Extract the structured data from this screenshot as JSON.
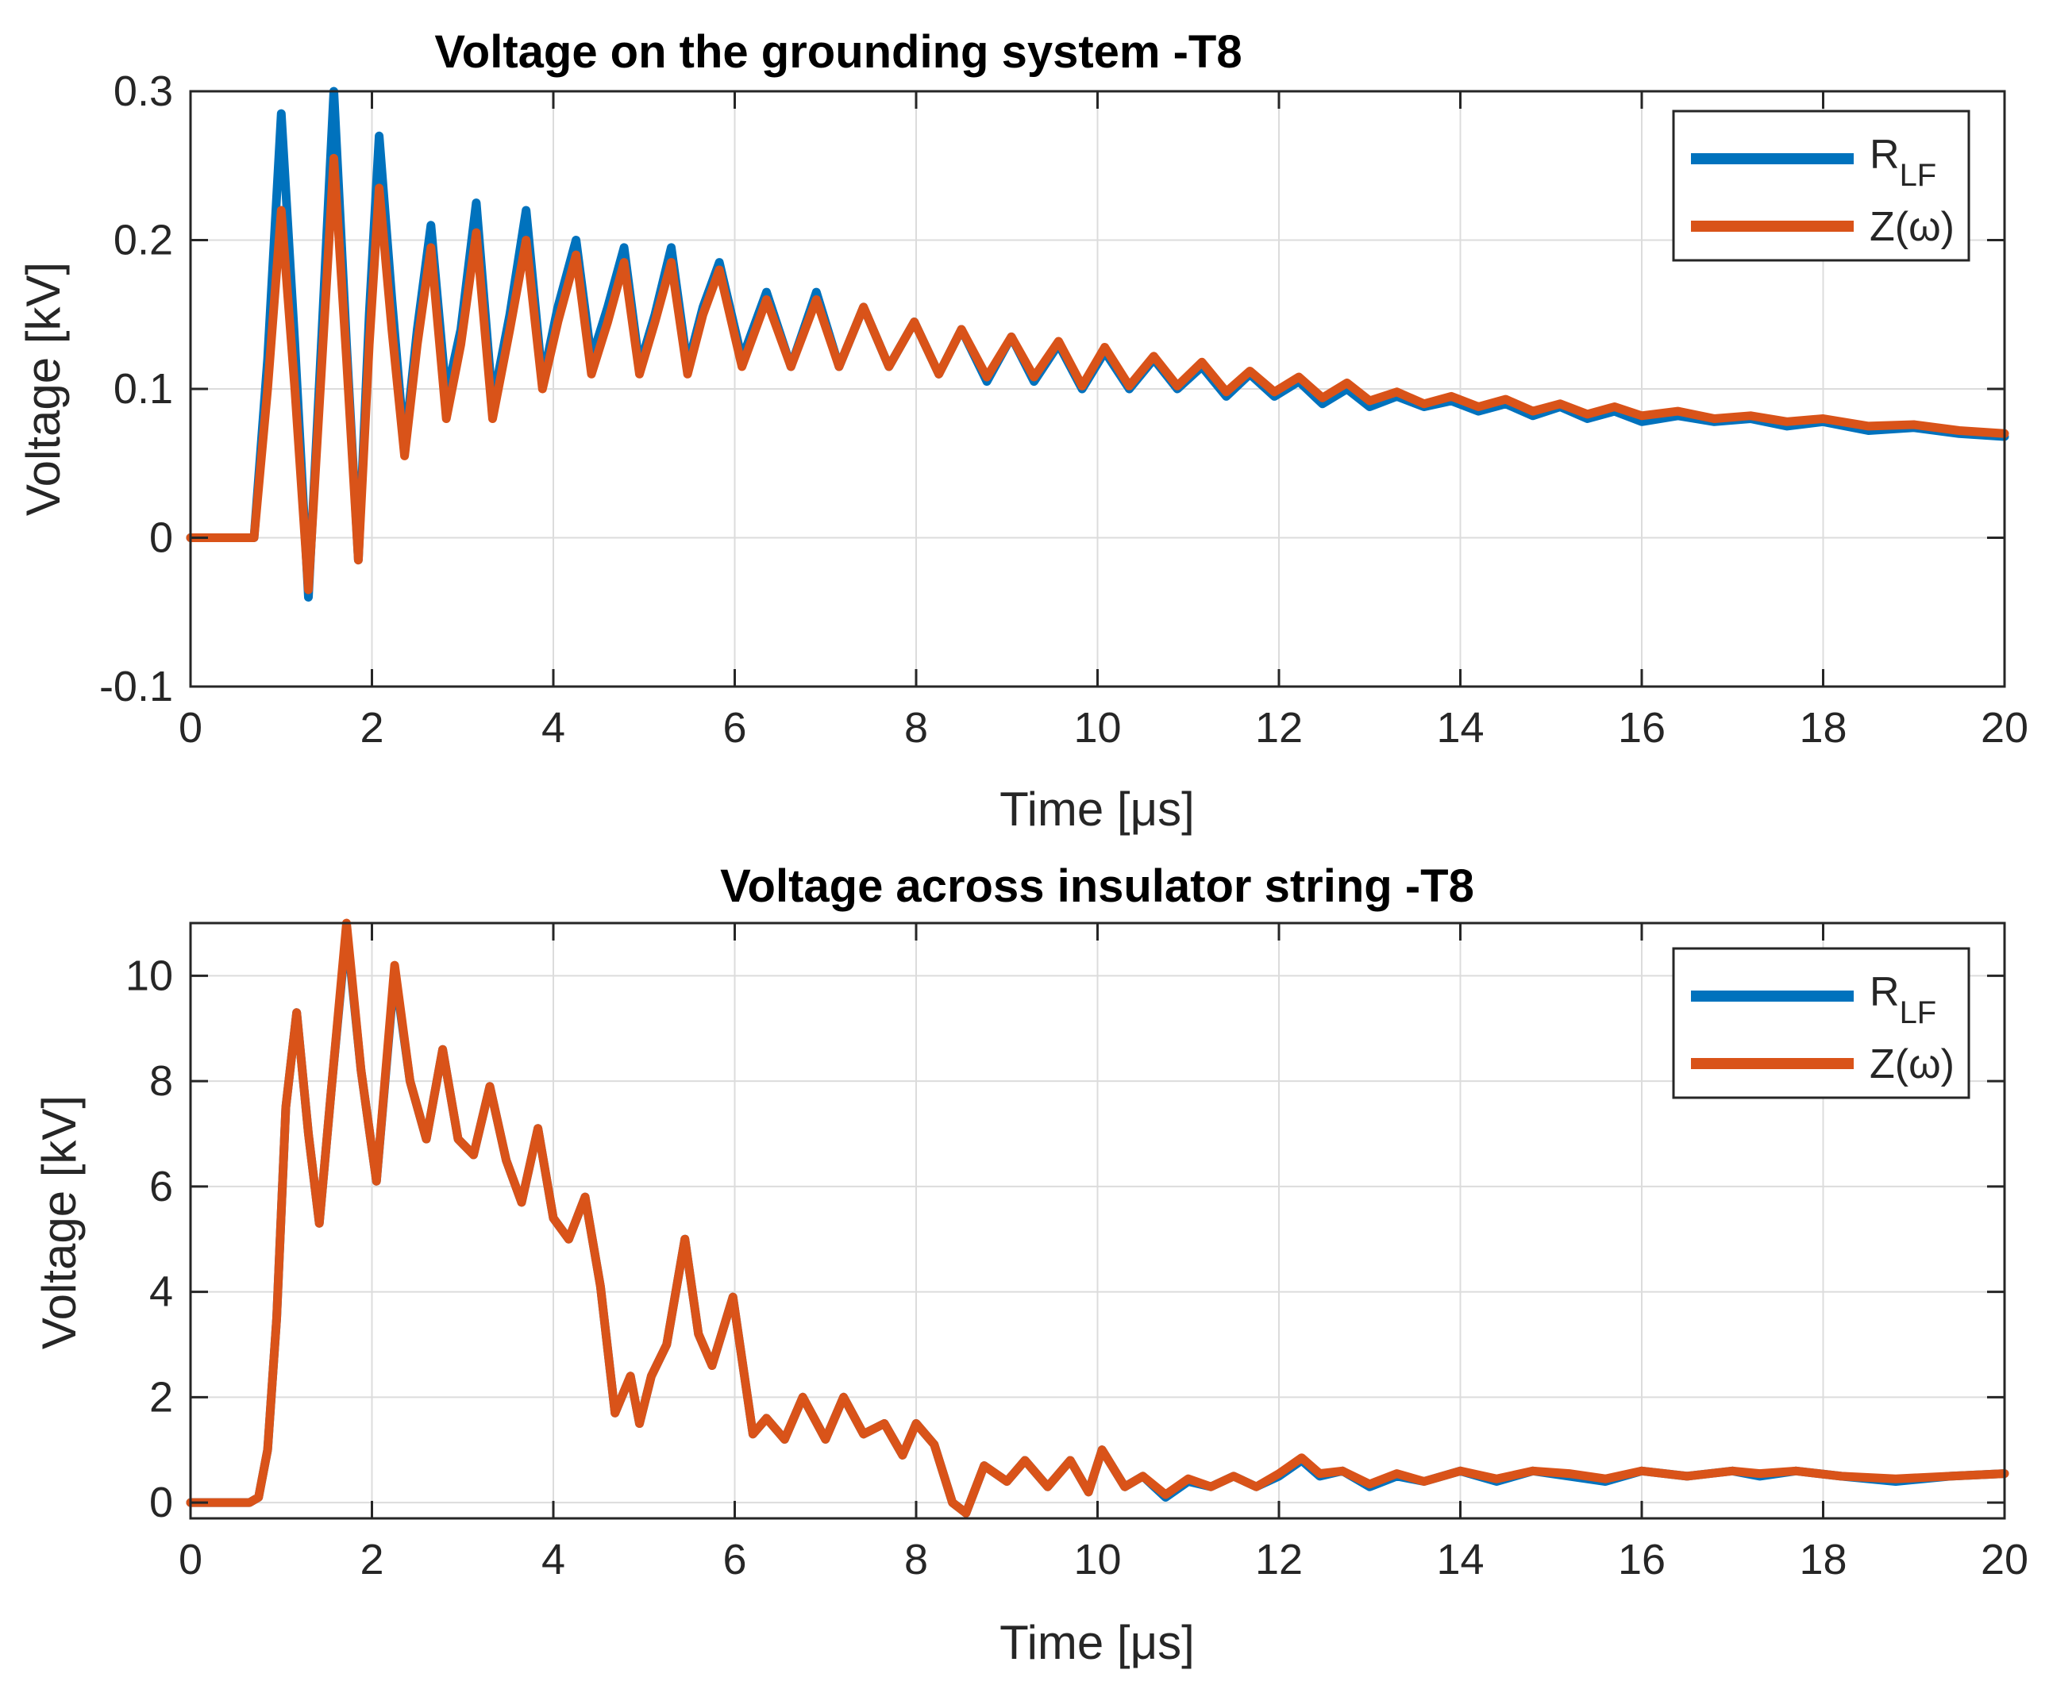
{
  "colors": {
    "blue": "#0072bd",
    "orange": "#d95319",
    "axis": "#262626",
    "grid": "#dcdcdc"
  },
  "chart_data": [
    {
      "type": "line",
      "title": "Voltage on the grounding system -T8",
      "xlabel": "Time [μs]",
      "ylabel": "Voltage [kV]",
      "xlim": [
        0,
        20
      ],
      "ylim": [
        -0.1,
        0.3
      ],
      "xticks": [
        0,
        2,
        4,
        6,
        8,
        10,
        12,
        14,
        16,
        18,
        20
      ],
      "yticks": [
        -0.1,
        0,
        0.1,
        0.2,
        0.3
      ],
      "ytick_labels": [
        "-0.1",
        "0",
        "0.1",
        "0.2",
        "0.3"
      ],
      "grid": true,
      "legend_position": "top-right",
      "series": [
        {
          "name": "R_LF",
          "name_main": "R",
          "name_sub": "LF",
          "color": "#0072bd",
          "x": [
            0,
            0.7,
            0.85,
            1.0,
            1.15,
            1.3,
            1.45,
            1.58,
            1.72,
            1.85,
            1.97,
            2.08,
            2.22,
            2.36,
            2.5,
            2.65,
            2.82,
            2.98,
            3.15,
            3.33,
            3.52,
            3.7,
            3.88,
            4.05,
            4.25,
            4.42,
            4.6,
            4.78,
            4.95,
            5.12,
            5.3,
            5.48,
            5.65,
            5.83,
            6.08,
            6.35,
            6.62,
            6.9,
            7.15,
            7.42,
            7.7,
            7.98,
            8.25,
            8.5,
            8.78,
            9.05,
            9.3,
            9.57,
            9.83,
            10.08,
            10.35,
            10.62,
            10.88,
            11.15,
            11.42,
            11.68,
            11.95,
            12.22,
            12.48,
            12.75,
            13.0,
            13.3,
            13.6,
            13.9,
            14.2,
            14.5,
            14.8,
            15.1,
            15.4,
            15.7,
            16.0,
            16.4,
            16.8,
            17.2,
            17.6,
            18.0,
            18.5,
            19.0,
            19.5,
            20.0
          ],
          "y": [
            0,
            0,
            0.12,
            0.285,
            0.13,
            -0.04,
            0.14,
            0.3,
            0.13,
            -0.015,
            0.15,
            0.27,
            0.16,
            0.06,
            0.14,
            0.21,
            0.095,
            0.14,
            0.225,
            0.09,
            0.15,
            0.22,
            0.105,
            0.155,
            0.2,
            0.12,
            0.155,
            0.195,
            0.115,
            0.15,
            0.195,
            0.115,
            0.155,
            0.185,
            0.12,
            0.165,
            0.115,
            0.165,
            0.115,
            0.155,
            0.115,
            0.145,
            0.11,
            0.14,
            0.105,
            0.135,
            0.105,
            0.13,
            0.1,
            0.125,
            0.1,
            0.12,
            0.1,
            0.115,
            0.095,
            0.11,
            0.095,
            0.105,
            0.09,
            0.1,
            0.088,
            0.095,
            0.088,
            0.092,
            0.085,
            0.09,
            0.082,
            0.088,
            0.08,
            0.085,
            0.078,
            0.082,
            0.078,
            0.08,
            0.075,
            0.078,
            0.072,
            0.074,
            0.07,
            0.068
          ]
        },
        {
          "name": "Z(ω)",
          "color": "#d95319",
          "x": [
            0,
            0.7,
            0.85,
            1.0,
            1.15,
            1.3,
            1.45,
            1.58,
            1.72,
            1.85,
            1.97,
            2.08,
            2.22,
            2.36,
            2.5,
            2.65,
            2.82,
            2.98,
            3.15,
            3.33,
            3.52,
            3.7,
            3.88,
            4.05,
            4.25,
            4.42,
            4.6,
            4.78,
            4.95,
            5.12,
            5.3,
            5.48,
            5.65,
            5.83,
            6.08,
            6.35,
            6.62,
            6.9,
            7.15,
            7.42,
            7.7,
            7.98,
            8.25,
            8.5,
            8.78,
            9.05,
            9.3,
            9.57,
            9.83,
            10.08,
            10.35,
            10.62,
            10.88,
            11.15,
            11.42,
            11.68,
            11.95,
            12.22,
            12.48,
            12.75,
            13.0,
            13.3,
            13.6,
            13.9,
            14.2,
            14.5,
            14.8,
            15.1,
            15.4,
            15.7,
            16.0,
            16.4,
            16.8,
            17.2,
            17.6,
            18.0,
            18.5,
            19.0,
            19.5,
            20.0
          ],
          "y": [
            0,
            0,
            0.1,
            0.22,
            0.1,
            -0.035,
            0.12,
            0.255,
            0.12,
            -0.015,
            0.13,
            0.235,
            0.14,
            0.055,
            0.13,
            0.195,
            0.08,
            0.13,
            0.205,
            0.08,
            0.14,
            0.2,
            0.1,
            0.145,
            0.19,
            0.11,
            0.145,
            0.185,
            0.11,
            0.145,
            0.185,
            0.11,
            0.15,
            0.18,
            0.115,
            0.16,
            0.115,
            0.16,
            0.115,
            0.155,
            0.115,
            0.145,
            0.11,
            0.14,
            0.108,
            0.135,
            0.108,
            0.132,
            0.102,
            0.128,
            0.102,
            0.122,
            0.102,
            0.118,
            0.098,
            0.112,
            0.098,
            0.108,
            0.094,
            0.104,
            0.092,
            0.098,
            0.09,
            0.095,
            0.088,
            0.093,
            0.085,
            0.09,
            0.083,
            0.088,
            0.082,
            0.085,
            0.08,
            0.082,
            0.078,
            0.08,
            0.075,
            0.076,
            0.072,
            0.07
          ]
        }
      ]
    },
    {
      "type": "line",
      "title": "Voltage across insulator string -T8",
      "xlabel": "Time [μs]",
      "ylabel": "Voltage [kV]",
      "xlim": [
        0,
        20
      ],
      "ylim": [
        -0.3,
        11
      ],
      "xticks": [
        0,
        2,
        4,
        6,
        8,
        10,
        12,
        14,
        16,
        18,
        20
      ],
      "yticks": [
        0,
        2,
        4,
        6,
        8,
        10
      ],
      "ytick_labels": [
        "0",
        "2",
        "4",
        "6",
        "8",
        "10"
      ],
      "grid": true,
      "legend_position": "top-right",
      "series": [
        {
          "name": "R_LF",
          "name_main": "R",
          "name_sub": "LF",
          "color": "#0072bd",
          "x": [
            0,
            0.65,
            0.75,
            0.85,
            0.95,
            1.05,
            1.17,
            1.3,
            1.42,
            1.55,
            1.72,
            1.88,
            2.05,
            2.25,
            2.42,
            2.6,
            2.78,
            2.95,
            3.12,
            3.3,
            3.48,
            3.65,
            3.83,
            4.0,
            4.17,
            4.35,
            4.52,
            4.68,
            4.85,
            4.95,
            5.08,
            5.25,
            5.45,
            5.6,
            5.75,
            5.98,
            6.2,
            6.35,
            6.55,
            6.75,
            7.0,
            7.2,
            7.42,
            7.65,
            7.85,
            8.0,
            8.2,
            8.4,
            8.55,
            8.75,
            9.0,
            9.2,
            9.45,
            9.7,
            9.9,
            10.05,
            10.3,
            10.5,
            10.75,
            11.0,
            11.25,
            11.5,
            11.75,
            12.0,
            12.25,
            12.45,
            12.7,
            13.0,
            13.3,
            13.6,
            14.0,
            14.4,
            14.8,
            15.2,
            15.6,
            16.0,
            16.5,
            17.0,
            17.3,
            17.7,
            18.2,
            18.8,
            19.4,
            20.0
          ],
          "y": [
            0,
            0,
            0.1,
            1.0,
            3.5,
            7.5,
            9.3,
            7.0,
            5.3,
            7.8,
            10.9,
            8.2,
            6.1,
            10.1,
            8.0,
            6.9,
            8.6,
            6.9,
            6.6,
            7.9,
            6.5,
            5.7,
            7.1,
            5.4,
            5.0,
            5.8,
            4.1,
            1.7,
            2.4,
            1.5,
            2.4,
            3.0,
            5.0,
            3.2,
            2.6,
            3.9,
            1.3,
            1.6,
            1.2,
            2.0,
            1.2,
            2.0,
            1.3,
            1.5,
            0.9,
            1.5,
            1.1,
            0.0,
            -0.2,
            0.7,
            0.4,
            0.8,
            0.3,
            0.8,
            0.2,
            1.0,
            0.3,
            0.5,
            0.1,
            0.4,
            0.3,
            0.5,
            0.3,
            0.5,
            0.8,
            0.5,
            0.6,
            0.3,
            0.5,
            0.4,
            0.6,
            0.4,
            0.6,
            0.5,
            0.4,
            0.6,
            0.5,
            0.6,
            0.5,
            0.6,
            0.5,
            0.4,
            0.5,
            0.55
          ]
        },
        {
          "name": "Z(ω)",
          "color": "#d95319",
          "x": [
            0,
            0.65,
            0.75,
            0.85,
            0.95,
            1.05,
            1.17,
            1.3,
            1.42,
            1.55,
            1.72,
            1.88,
            2.05,
            2.25,
            2.42,
            2.6,
            2.78,
            2.95,
            3.12,
            3.3,
            3.48,
            3.65,
            3.83,
            4.0,
            4.17,
            4.35,
            4.52,
            4.68,
            4.85,
            4.95,
            5.08,
            5.25,
            5.45,
            5.6,
            5.75,
            5.98,
            6.2,
            6.35,
            6.55,
            6.75,
            7.0,
            7.2,
            7.42,
            7.65,
            7.85,
            8.0,
            8.2,
            8.4,
            8.55,
            8.75,
            9.0,
            9.2,
            9.45,
            9.7,
            9.9,
            10.05,
            10.3,
            10.5,
            10.75,
            11.0,
            11.25,
            11.5,
            11.75,
            12.0,
            12.25,
            12.45,
            12.7,
            13.0,
            13.3,
            13.6,
            14.0,
            14.4,
            14.8,
            15.2,
            15.6,
            16.0,
            16.5,
            17.0,
            17.3,
            17.7,
            18.2,
            18.8,
            19.4,
            20.0
          ],
          "y": [
            0,
            0,
            0.1,
            1.0,
            3.5,
            7.5,
            9.3,
            7.0,
            5.3,
            7.8,
            11.0,
            8.2,
            6.1,
            10.2,
            8.0,
            6.9,
            8.6,
            6.9,
            6.6,
            7.9,
            6.5,
            5.7,
            7.1,
            5.4,
            5.0,
            5.8,
            4.1,
            1.7,
            2.4,
            1.5,
            2.4,
            3.0,
            5.0,
            3.2,
            2.6,
            3.9,
            1.3,
            1.6,
            1.2,
            2.0,
            1.2,
            2.0,
            1.3,
            1.5,
            0.9,
            1.5,
            1.1,
            0.0,
            -0.2,
            0.7,
            0.4,
            0.8,
            0.3,
            0.8,
            0.2,
            1.0,
            0.3,
            0.5,
            0.15,
            0.45,
            0.3,
            0.5,
            0.3,
            0.55,
            0.85,
            0.55,
            0.6,
            0.35,
            0.55,
            0.4,
            0.6,
            0.45,
            0.6,
            0.55,
            0.45,
            0.6,
            0.5,
            0.6,
            0.55,
            0.6,
            0.5,
            0.45,
            0.5,
            0.55
          ]
        }
      ]
    }
  ]
}
